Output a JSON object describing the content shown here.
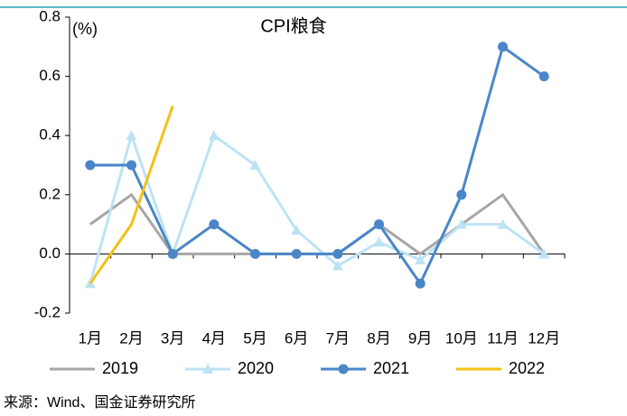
{
  "chart_data": {
    "type": "line",
    "title": "CPI粮食",
    "y_label": "(%)",
    "categories": [
      "1月",
      "2月",
      "3月",
      "4月",
      "5月",
      "6月",
      "7月",
      "8月",
      "9月",
      "10月",
      "11月",
      "12月"
    ],
    "series": [
      {
        "name": "2019",
        "color": "#a6a6a6",
        "marker": "none",
        "values": [
          0.1,
          0.2,
          0.0,
          0.0,
          0.0,
          0.0,
          0.0,
          0.1,
          0.0,
          0.1,
          0.2,
          0.0
        ]
      },
      {
        "name": "2020",
        "color": "#bde3f3",
        "marker": "triangle",
        "values": [
          -0.1,
          0.4,
          0.0,
          0.4,
          0.3,
          0.08,
          -0.04,
          0.04,
          -0.02,
          0.1,
          0.1,
          0.0
        ]
      },
      {
        "name": "2021",
        "color": "#4a86c8",
        "marker": "circle",
        "values": [
          0.3,
          0.3,
          0.0,
          0.1,
          0.0,
          0.0,
          0.0,
          0.1,
          -0.1,
          0.2,
          0.7,
          0.6
        ]
      },
      {
        "name": "2022",
        "color": "#f5c015",
        "marker": "none",
        "values": [
          -0.1,
          0.1,
          0.5,
          null,
          null,
          null,
          null,
          null,
          null,
          null,
          null,
          null
        ]
      }
    ],
    "ylim": [
      -0.2,
      0.8
    ],
    "yticks": [
      -0.2,
      {
        "value": 0,
        "label": "0.0"
      },
      0.2,
      0.4,
      0.6,
      0.8
    ],
    "source": "来源：Wind、国金证券研究所"
  }
}
